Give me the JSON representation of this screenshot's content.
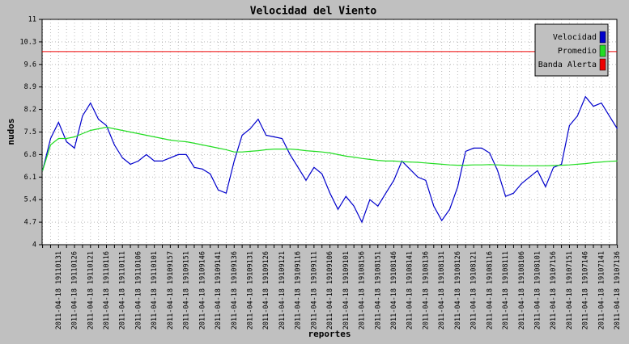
{
  "chart_data": {
    "type": "line",
    "title": "Velocidad del Viento",
    "x_label": "reportes",
    "y_label": "nudos",
    "categories": [
      null,
      null,
      "2011-04-18 19110131",
      null,
      "2011-04-18 19110126",
      null,
      "2011-04-18 19110121",
      null,
      "2011-04-18 19110116",
      null,
      "2011-04-18 19110111",
      null,
      "2011-04-18 19110106",
      null,
      "2011-04-18 19110101",
      null,
      "2011-04-18 19109157",
      null,
      "2011-04-18 19109151",
      null,
      "2011-04-18 19109146",
      null,
      "2011-04-18 19109141",
      null,
      "2011-04-18 19109136",
      null,
      "2011-04-18 19109131",
      null,
      "2011-04-18 19109126",
      null,
      "2011-04-18 19109121",
      null,
      "2011-04-18 19109116",
      null,
      "2011-04-18 19109111",
      null,
      "2011-04-18 19109106",
      null,
      "2011-04-18 19109101",
      null,
      "2011-04-18 19108156",
      null,
      "2011-04-18 19108151",
      null,
      "2011-04-18 19108146",
      null,
      "2011-04-18 19108141",
      null,
      "2011-04-18 19108136",
      null,
      "2011-04-18 19108131",
      null,
      "2011-04-18 19108126",
      null,
      "2011-04-18 19108121",
      null,
      "2011-04-18 19108116",
      null,
      "2011-04-18 19108111",
      null,
      "2011-04-18 19108106",
      null,
      "2011-04-18 19108101",
      null,
      "2011-04-18 19107156",
      null,
      "2011-04-18 19107151",
      null,
      "2011-04-18 19107146",
      null,
      "2011-04-18 19107141",
      null,
      "2011-04-18 19107136"
    ],
    "series": [
      {
        "name": "Velocidad",
        "color": "#0000cc",
        "values": [
          6.3,
          7.3,
          7.8,
          7.2,
          7.0,
          8.0,
          8.4,
          7.9,
          7.7,
          7.1,
          6.7,
          6.5,
          6.6,
          6.8,
          6.6,
          6.6,
          6.7,
          6.8,
          6.8,
          6.4,
          6.35,
          6.2,
          5.7,
          5.6,
          6.6,
          7.4,
          7.6,
          7.9,
          7.4,
          7.35,
          7.3,
          6.8,
          6.4,
          6.0,
          6.4,
          6.2,
          5.6,
          5.1,
          5.5,
          5.2,
          4.7,
          5.4,
          5.2,
          5.6,
          6.0,
          6.6,
          6.35,
          6.1,
          6.0,
          5.2,
          4.75,
          5.1,
          5.8,
          6.9,
          7.0,
          7.0,
          6.85,
          6.3,
          5.5,
          5.6,
          5.9,
          6.1,
          6.3,
          5.8,
          6.4,
          6.5,
          7.7,
          8.0,
          8.6,
          8.3,
          8.4,
          8.0,
          7.6
        ]
      },
      {
        "name": "Promedio",
        "color": "#22dd22",
        "values": [
          6.3,
          7.1,
          7.3,
          7.3,
          7.35,
          7.45,
          7.55,
          7.6,
          7.65,
          7.6,
          7.55,
          7.5,
          7.45,
          7.4,
          7.35,
          7.3,
          7.25,
          7.22,
          7.2,
          7.15,
          7.1,
          7.05,
          7.0,
          6.95,
          6.88,
          6.88,
          6.9,
          6.92,
          6.95,
          6.97,
          6.97,
          6.97,
          6.95,
          6.92,
          6.9,
          6.88,
          6.85,
          6.8,
          6.75,
          6.72,
          6.68,
          6.65,
          6.62,
          6.6,
          6.6,
          6.58,
          6.57,
          6.56,
          6.54,
          6.52,
          6.5,
          6.48,
          6.47,
          6.47,
          6.48,
          6.48,
          6.49,
          6.48,
          6.47,
          6.46,
          6.45,
          6.45,
          6.45,
          6.45,
          6.46,
          6.47,
          6.48,
          6.5,
          6.52,
          6.55,
          6.57,
          6.59,
          6.6
        ]
      }
    ],
    "alert_band": {
      "name": "Banda Alerta",
      "value": 10,
      "color": "#ee0000"
    },
    "ylim": [
      4,
      11
    ],
    "yticks": [
      4,
      4.7,
      5.4,
      6.1,
      6.8,
      7.5,
      8.2,
      8.9,
      9.6,
      10.3,
      11
    ],
    "grid": true,
    "legend": "top-right"
  }
}
